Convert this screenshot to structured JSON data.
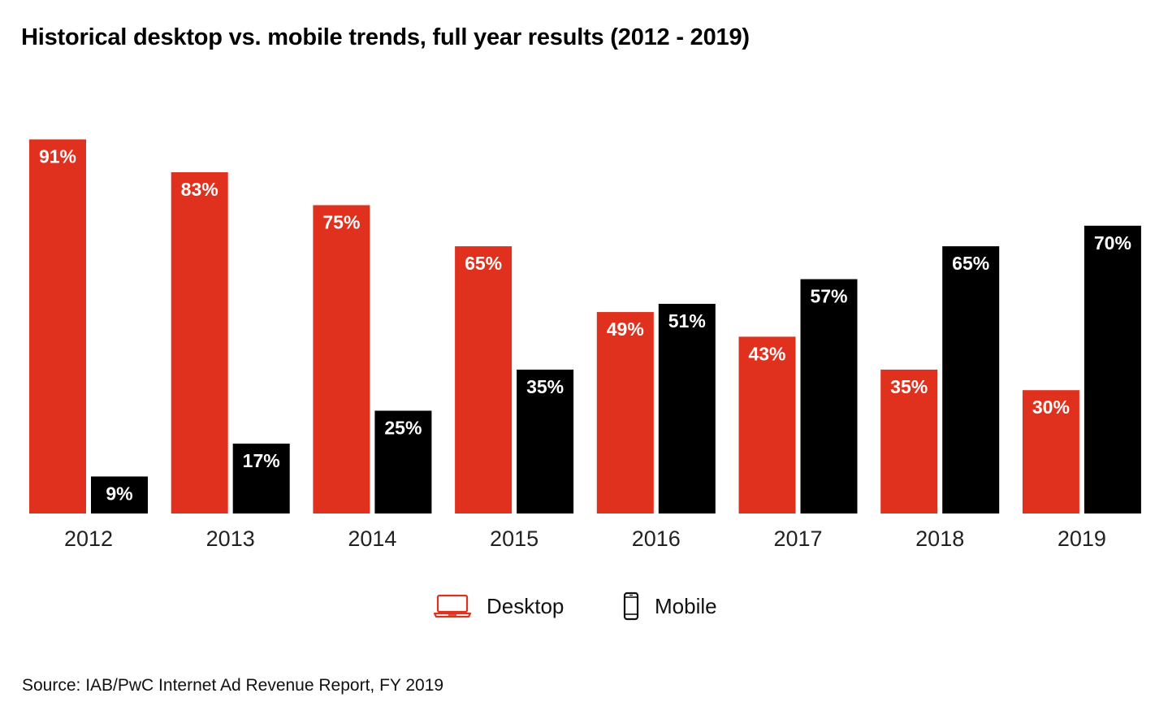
{
  "chart_data": {
    "type": "bar",
    "title": "Historical desktop vs. mobile trends, full year results (2012 - 2019)",
    "categories": [
      "2012",
      "2013",
      "2014",
      "2015",
      "2016",
      "2017",
      "2018",
      "2019"
    ],
    "series": [
      {
        "name": "Desktop",
        "color": "#e0301e",
        "values": [
          91,
          83,
          75,
          65,
          49,
          43,
          35,
          30
        ],
        "labels": [
          "91%",
          "83%",
          "75%",
          "65%",
          "49%",
          "43%",
          "35%",
          "30%"
        ]
      },
      {
        "name": "Mobile",
        "color": "#000000",
        "values": [
          9,
          17,
          25,
          35,
          51,
          57,
          65,
          70
        ],
        "labels": [
          "9%",
          "17%",
          "25%",
          "35%",
          "51%",
          "57%",
          "65%",
          "70%"
        ]
      }
    ],
    "ylim": [
      0,
      100
    ],
    "grid": false,
    "legend_position": "bottom-center",
    "source": "Source: IAB/PwC Internet Ad Revenue Report, FY 2019"
  },
  "legend": {
    "desktop_icon": "laptop-icon",
    "mobile_icon": "smartphone-icon"
  }
}
